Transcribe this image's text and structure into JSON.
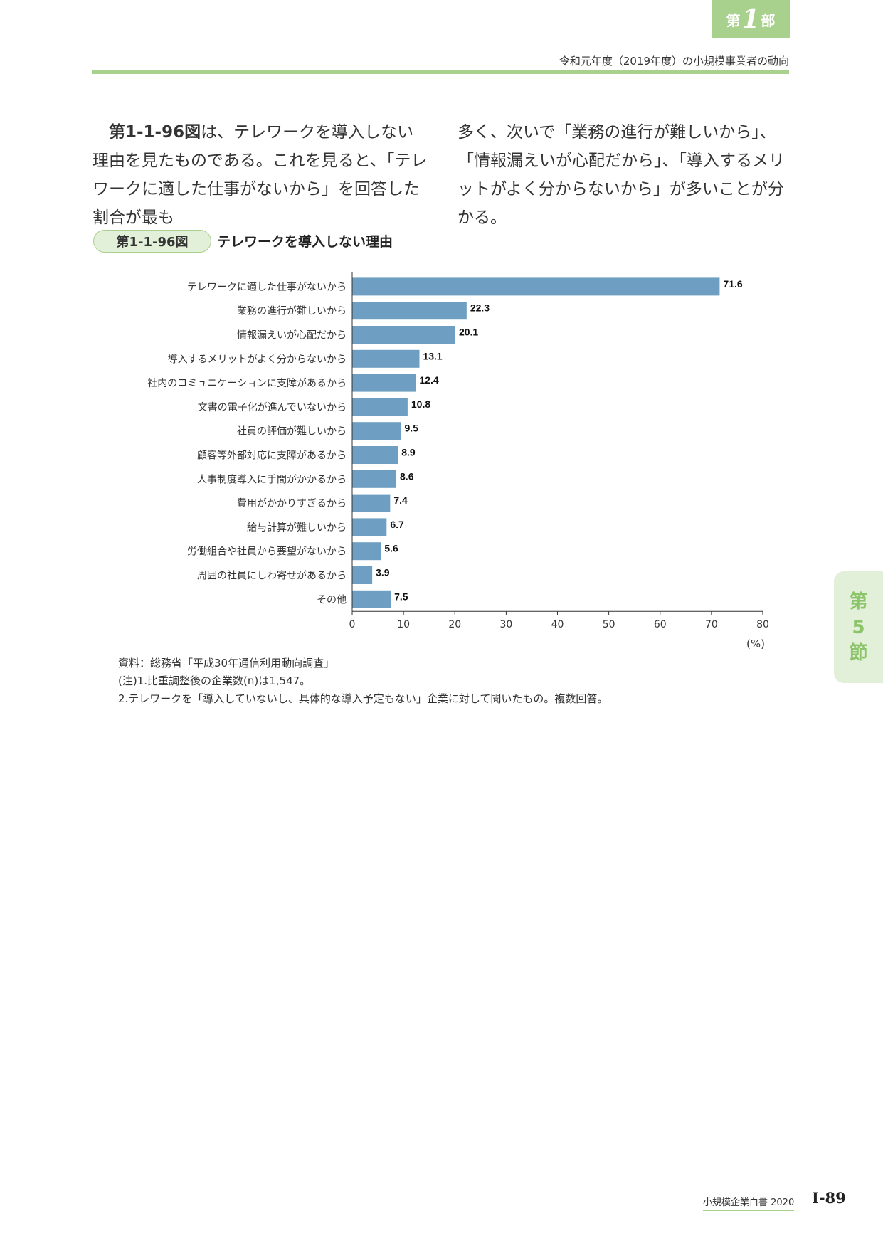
{
  "header": {
    "part_prefix": "第",
    "part_number": "1",
    "part_suffix": "部",
    "running_title": "令和元年度（2019年度）の小規模事業者の動向"
  },
  "body": {
    "left": {
      "ref": "第1-1-96図",
      "text": "は、テレワークを導入しない理由を見たものである。これを見ると、「テレワークに適した仕事がないから」を回答した割合が最も"
    },
    "right": "多く、次いで「業務の進行が難しいから」、「情報漏えいが心配だから」、「導入するメリットがよく分からないから」が多いことが分かる。"
  },
  "figure": {
    "number": "第1-1-96図",
    "title": "テレワークを導入しない理由"
  },
  "chart_data": {
    "type": "bar",
    "orientation": "horizontal",
    "categories": [
      "テレワークに適した仕事がないから",
      "業務の進行が難しいから",
      "情報漏えいが心配だから",
      "導入するメリットがよく分からないから",
      "社内のコミュニケーションに支障があるから",
      "文書の電子化が進んでいないから",
      "社員の評価が難しいから",
      "顧客等外部対応に支障があるから",
      "人事制度導入に手間がかかるから",
      "費用がかかりすぎるから",
      "給与計算が難しいから",
      "労働組合や社員から要望がないから",
      "周囲の社員にしわ寄せがあるから",
      "その他"
    ],
    "values": [
      71.6,
      22.3,
      20.1,
      13.1,
      12.4,
      10.8,
      9.5,
      8.9,
      8.6,
      7.4,
      6.7,
      5.6,
      3.9,
      7.5
    ],
    "value_labels": [
      "71.6",
      "22.3",
      "20.1",
      "13.1",
      "12.4",
      "10.8",
      "9.5",
      "8.9",
      "8.6",
      "7.4",
      "6.7",
      "5.6",
      "3.9",
      "7.5"
    ],
    "xlim": [
      0,
      80
    ],
    "xticks": [
      "0",
      "10",
      "20",
      "30",
      "40",
      "50",
      "60",
      "70",
      "80"
    ],
    "unit_label": "(%)",
    "bar_color": "#6e9fc2",
    "grid": false
  },
  "notes": {
    "source": "資料：総務省「平成30年通信利用動向調査」",
    "note1": "(注)1.比重調整後の企業数(n)は1,547。",
    "note2": "2.テレワークを「導入していないし、具体的な導入予定もない」企業に対して聞いたもの。複数回答。"
  },
  "side_tab": {
    "line1": "第",
    "line2": "5",
    "line3": "節"
  },
  "footer": {
    "book": "小規模企業白書  2020",
    "page": "I-89"
  }
}
